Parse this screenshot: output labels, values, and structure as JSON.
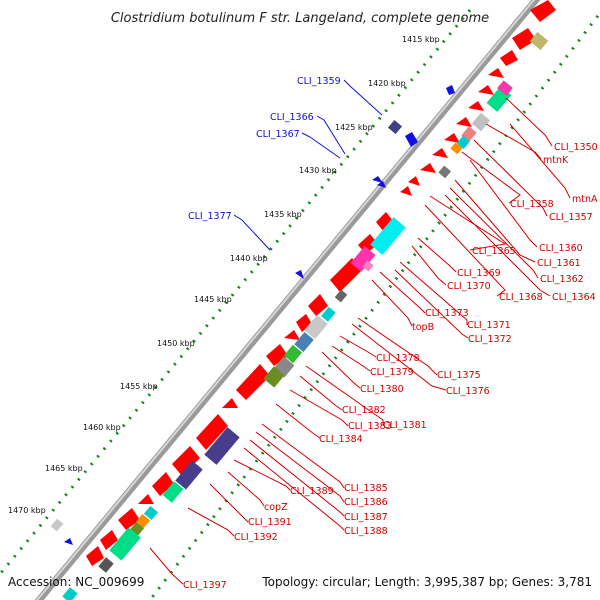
{
  "title": "Clostridium botulinum F str. Langeland, complete genome",
  "accession": "Accession: NC_009699",
  "topology": "Topology: circular; Length: 3,995,387 bp; Genes: 3,781",
  "kbp_ticks": [
    "1415 kbp",
    "1420 kbp",
    "1425 kbp",
    "1430 kbp",
    "1435 kbp",
    "1440 kbp",
    "1445 kbp",
    "1450 kbp",
    "1455 kbp",
    "1460 kbp",
    "1465 kbp",
    "1470 kbp"
  ],
  "labels_outer": [
    "CLI_1359",
    "CLI_1366",
    "CLI_1367",
    "CLI_1377"
  ],
  "labels_inner": [
    "CLI_1350",
    "mtnK",
    "mtnA",
    "CLI_1357",
    "CLI_1358",
    "CLI_1360",
    "CLI_1361",
    "CLI_1362",
    "CLI_1364",
    "CLI_1365",
    "CLI_1368",
    "CLI_1369",
    "CLI_1370",
    "CLI_1371",
    "CLI_1372",
    "CLI_1373",
    "topB",
    "CLI_1375",
    "CLI_1376",
    "CLI_1378",
    "CLI_1379",
    "CLI_1380",
    "CLI_1381",
    "CLI_1382",
    "CLI_1383",
    "CLI_1384",
    "CLI_1385",
    "CLI_1386",
    "CLI_1387",
    "CLI_1388",
    "CLI_1389",
    "copZ",
    "CLI_1391",
    "CLI_1392",
    "CLI_1397"
  ],
  "colors": {
    "label_outer": "#1010cc",
    "label_inner": "#d10000",
    "gene_forward": "#ff0000",
    "gene_reverse": "#0000ff",
    "backbone": "#888888",
    "gc_track": "#118811"
  }
}
